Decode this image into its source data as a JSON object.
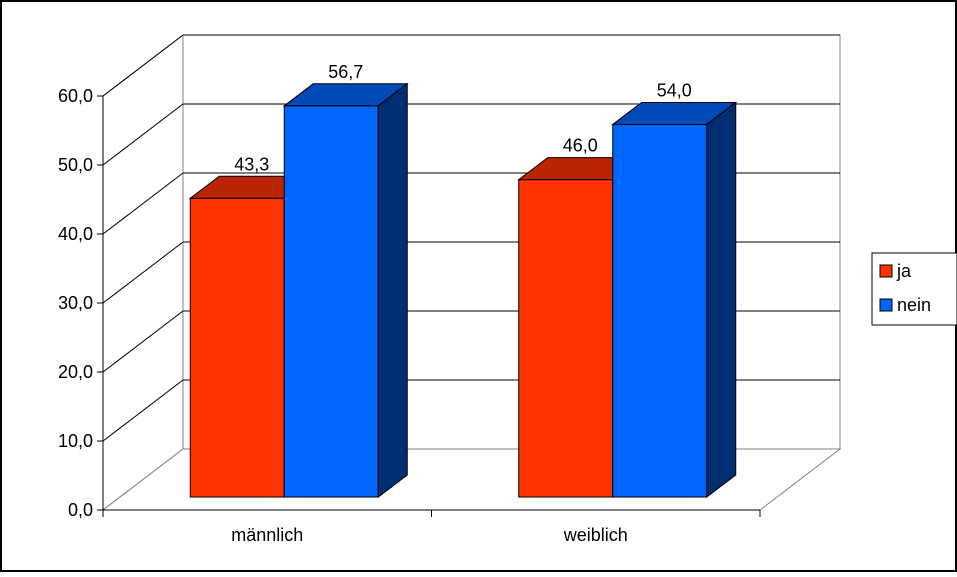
{
  "chart_data": {
    "type": "bar",
    "categories": [
      "männlich",
      "weiblich"
    ],
    "series": [
      {
        "name": "ja",
        "values": [
          43.3,
          46.0
        ],
        "color": "#FF3300"
      },
      {
        "name": "nein",
        "values": [
          56.7,
          54.0
        ],
        "color": "#0066FF"
      }
    ],
    "data_labels": [
      [
        "43,3",
        "46,0"
      ],
      [
        "56,7",
        "54,0"
      ]
    ],
    "y_ticks": [
      "0,0",
      "10,0",
      "20,0",
      "30,0",
      "40,0",
      "50,0",
      "60,0"
    ],
    "ylim": [
      0,
      60
    ],
    "y_step": 10,
    "grid": true,
    "legend_position": "right",
    "style": "3d-column"
  }
}
